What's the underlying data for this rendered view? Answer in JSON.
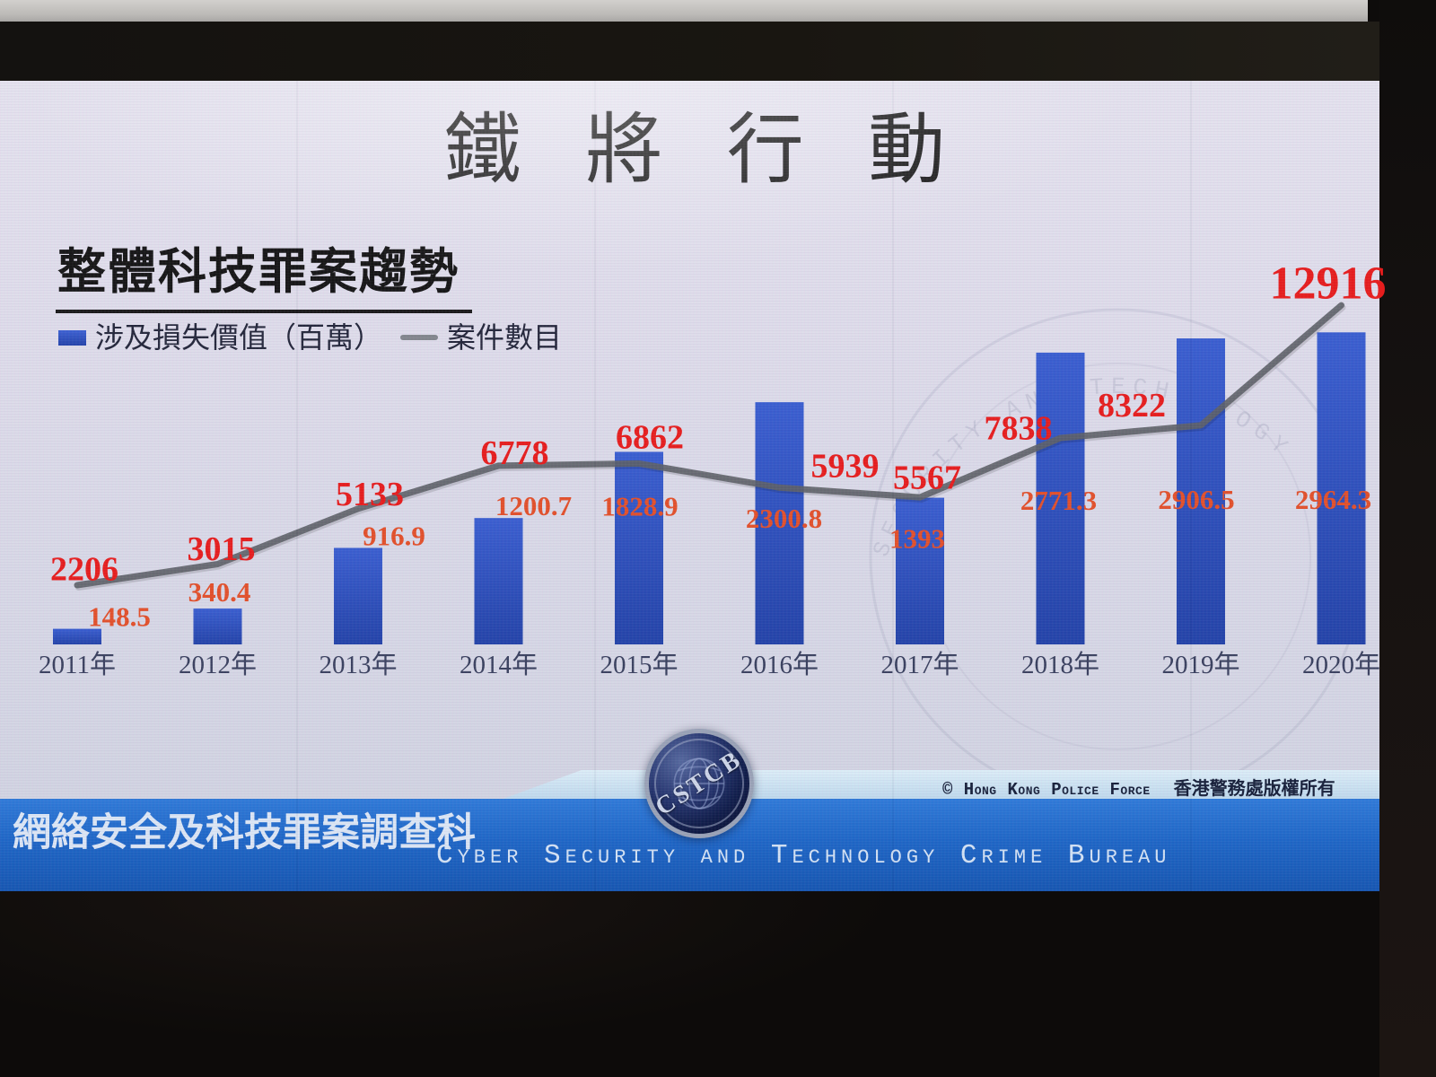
{
  "photo": {
    "screen_title": "鐵 將 行 動",
    "section_heading": "整體科技罪案趨勢",
    "legend": {
      "bar_label": "涉及損失價值（百萬）",
      "line_label": "案件數目"
    },
    "watermark_arc_text": "SECURITY AND TECHNOLOGY",
    "footer": {
      "bureau_zh": "網絡安全及科技罪案調查科",
      "bureau_en": "Cyber Security and Technology Crime Bureau",
      "copyright_en": "© Hong Kong Police Force",
      "copyright_zh": "香港警務處版權所有",
      "logo_text": "CSTCB"
    },
    "colors": {
      "bar_top": "#3a5ed0",
      "bar_bottom": "#2343a8",
      "line": "#5d6167",
      "case_label": "#e61d1d",
      "loss_label": "#e2502a",
      "year_label": "#39405e",
      "banner_blue": "#1e66c6",
      "accent_strip": "#cfe6f2"
    }
  },
  "chart_data": {
    "type": "bar",
    "title": "整體科技罪案趨勢",
    "categories": [
      "2011年",
      "2012年",
      "2013年",
      "2014年",
      "2015年",
      "2016年",
      "2017年",
      "2018年",
      "2019年",
      "2020年"
    ],
    "series": [
      {
        "name": "涉及損失價值（百萬）",
        "kind": "bar",
        "values": [
          148.5,
          340.4,
          916.9,
          1200.7,
          1828.9,
          2300.8,
          1393,
          2771.3,
          2906.5,
          2964.3
        ]
      },
      {
        "name": "案件數目",
        "kind": "line",
        "values": [
          2206,
          3015,
          5133,
          6778,
          6862,
          5939,
          5567,
          7838,
          8322,
          12916
        ]
      }
    ],
    "legend_position": "top-left",
    "grid": false,
    "axes_visible": false,
    "data_labels": true,
    "bar_axis_range": [
      0,
      3100
    ],
    "line_axis_range": [
      0,
      13500
    ]
  }
}
